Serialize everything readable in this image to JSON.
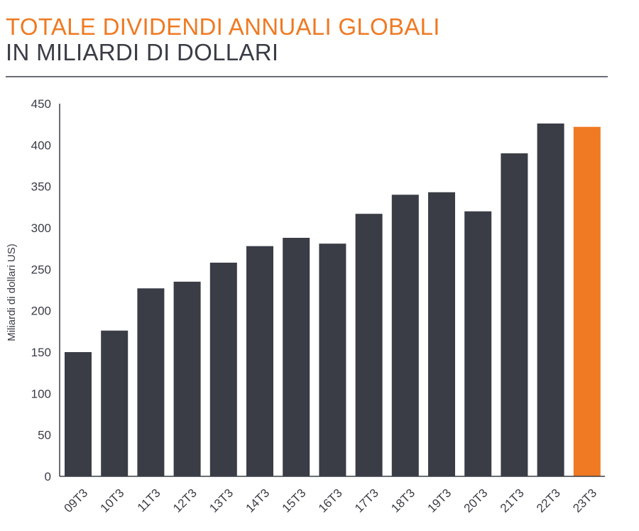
{
  "header": {
    "title_line1": "TOTALE DIVIDENDI ANNUALI GLOBALI",
    "title_line2": "IN MILIARDI DI DOLLARI"
  },
  "colors": {
    "bar_default": "#3a3d46",
    "bar_highlight": "#ef7a23",
    "axis": "#3a3d46"
  },
  "chart_data": {
    "type": "bar",
    "title": "TOTALE DIVIDENDI ANNUALI GLOBALI",
    "subtitle": "IN MILIARDI DI DOLLARI",
    "xlabel": "",
    "ylabel": "Miliardi di dollari US)",
    "ylim": [
      0,
      450
    ],
    "yticks": [
      0,
      50,
      100,
      150,
      200,
      250,
      300,
      350,
      400,
      450
    ],
    "grid": false,
    "categories": [
      "09T3",
      "10T3",
      "11T3",
      "12T3",
      "13T3",
      "14T3",
      "15T3",
      "16T3",
      "17T3",
      "18T3",
      "19T3",
      "20T3",
      "21T3",
      "22T3",
      "23T3"
    ],
    "values": [
      150,
      176,
      227,
      235,
      258,
      278,
      288,
      281,
      317,
      340,
      343,
      320,
      390,
      426,
      422
    ],
    "highlight_index": 14
  }
}
